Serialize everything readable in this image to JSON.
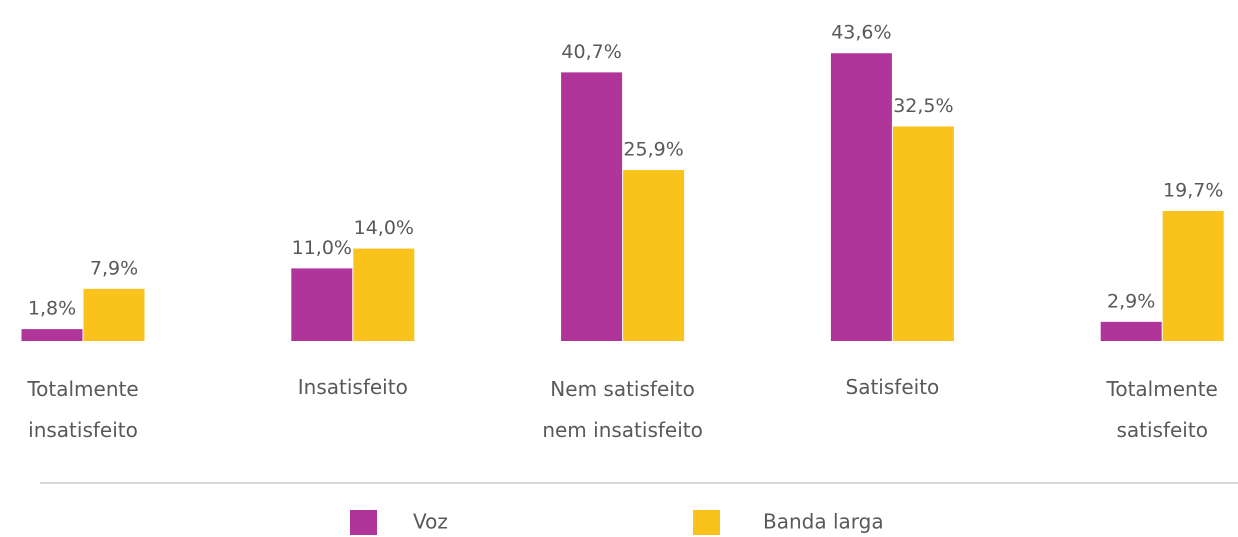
{
  "chart_data": {
    "type": "bar",
    "categories": [
      [
        "Totalmente",
        "insatisfeito"
      ],
      [
        "Insatisfeito"
      ],
      [
        "Nem satisfeito",
        "nem insatisfeito"
      ],
      [
        "Satisfeito"
      ],
      [
        "Totalmente",
        "satisfeito"
      ]
    ],
    "series": [
      {
        "name": "Voz",
        "color": "#b0359a",
        "values": [
          1.8,
          11.0,
          40.7,
          43.6,
          2.9
        ],
        "value_labels": [
          "1,8%",
          "11,0%",
          "40,7%",
          "43,6%",
          "2,9%"
        ]
      },
      {
        "name": "Banda larga",
        "color": "#f9c31b",
        "values": [
          7.9,
          14.0,
          25.9,
          32.5,
          19.7
        ],
        "value_labels": [
          "7,9%",
          "14,0%",
          "25,9%",
          "32,5%",
          "19,7%"
        ]
      }
    ]
  }
}
